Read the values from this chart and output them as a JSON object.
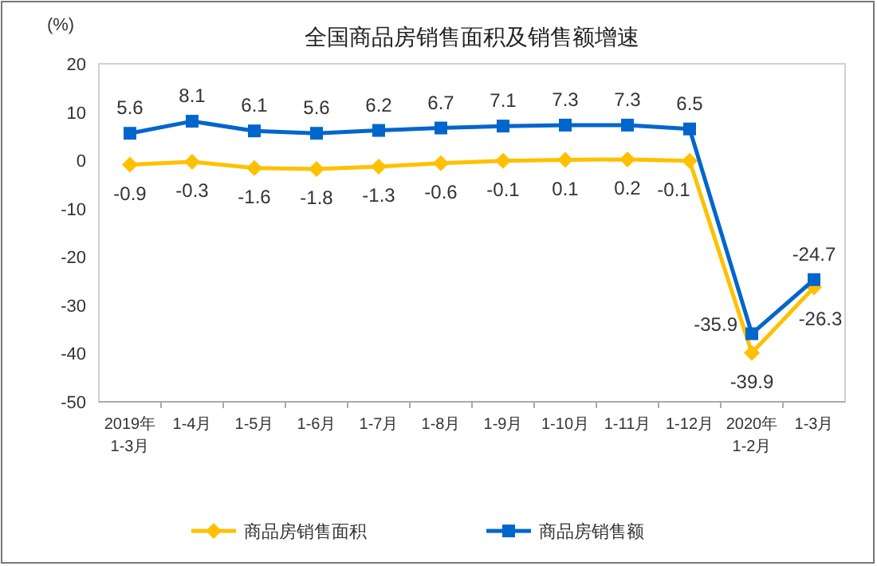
{
  "chart_data": {
    "type": "line",
    "title": "全国商品房销售面积及销售额增速",
    "ylabel": "(%)",
    "categories": [
      "2019年\n1-3月",
      "1-4月",
      "1-5月",
      "1-6月",
      "1-7月",
      "1-8月",
      "1-9月",
      "1-10月",
      "1-11月",
      "1-12月",
      "2020年\n1-2月",
      "1-3月"
    ],
    "series": [
      {
        "name": "商品房销售面积",
        "color": "#ffc000",
        "marker": "diamond",
        "values": [
          -0.9,
          -0.3,
          -1.6,
          -1.8,
          -1.3,
          -0.6,
          -0.1,
          0.1,
          0.2,
          -0.1,
          -39.9,
          -26.3
        ]
      },
      {
        "name": "商品房销售额",
        "color": "#0066cc",
        "marker": "square",
        "values": [
          5.6,
          8.1,
          6.1,
          5.6,
          6.2,
          6.7,
          7.1,
          7.3,
          7.3,
          6.5,
          -35.9,
          -24.7
        ]
      }
    ],
    "ylim": [
      -50,
      20
    ],
    "yticks": [
      -50,
      -40,
      -30,
      -20,
      -10,
      0,
      10,
      20
    ],
    "data_labels": true,
    "legend": "bottom",
    "grid": false
  }
}
